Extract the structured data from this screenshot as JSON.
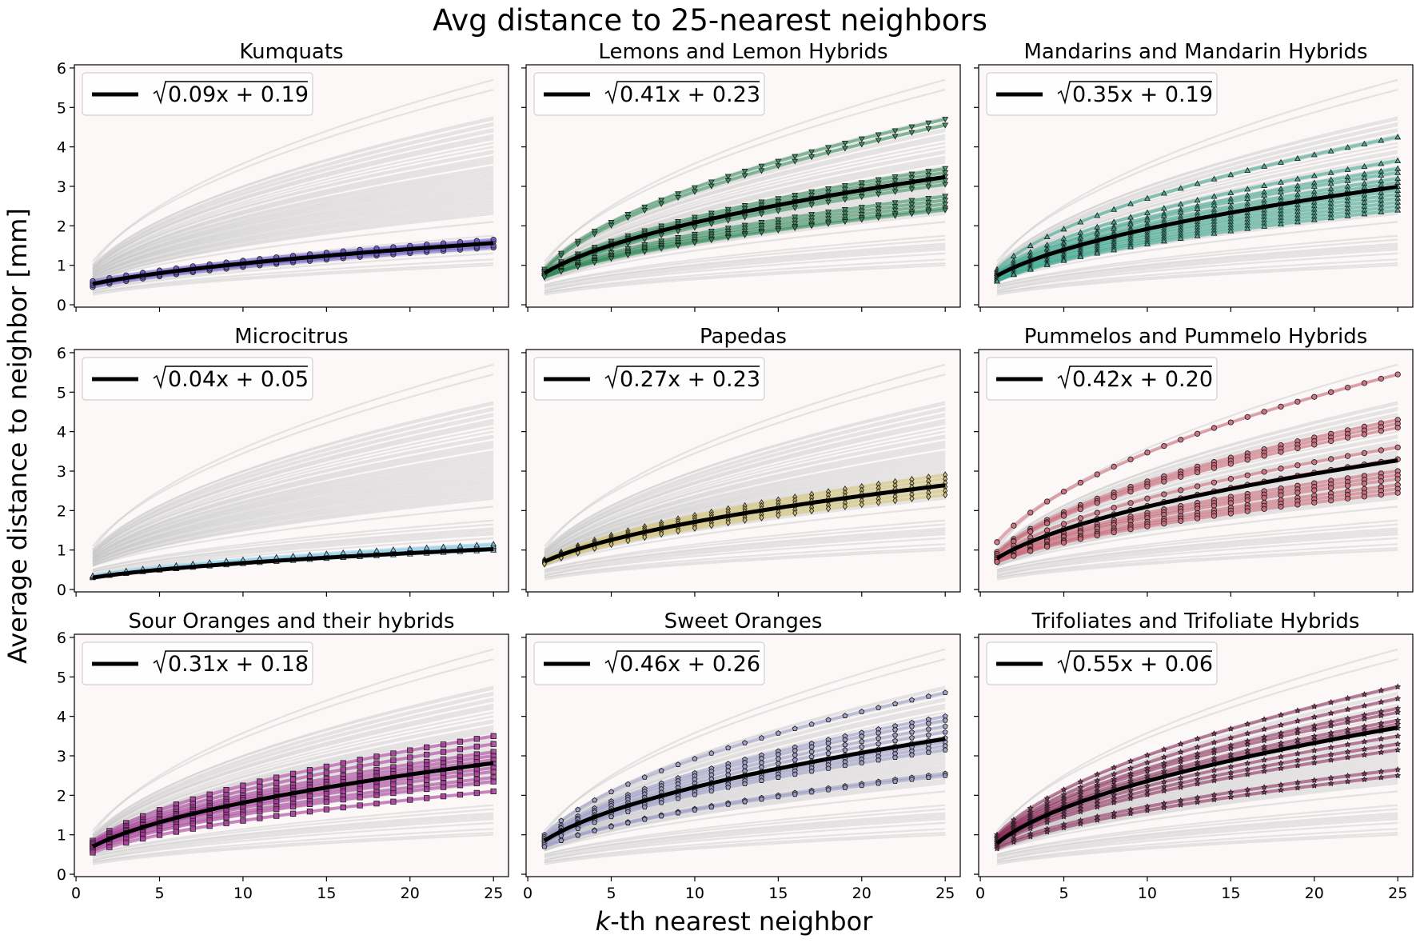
{
  "figure": {
    "title": "Avg distance to 25-nearest neighbors",
    "ylabel": "Average distance to neighbor [mm]",
    "xlabel_italic": "k",
    "xlabel_rest": "-th nearest neighbor"
  },
  "axes_style": {
    "background": "#fcf8f7",
    "background_line_color": "#c8c8c8",
    "fit_line_color": "#000000"
  },
  "chart_data": [
    {
      "type": "line",
      "title": "Kumquats",
      "x": [
        1,
        25
      ],
      "xlim": [
        0,
        25
      ],
      "ylim": [
        0,
        6
      ],
      "xticks": [
        0,
        5,
        10,
        15,
        20,
        25
      ],
      "yticks": [
        0,
        1,
        2,
        3,
        4,
        5,
        6
      ],
      "legend": "top-left",
      "fit_label": "0.09x + 0.19",
      "fit": {
        "a": 0.09,
        "b": 0.19
      },
      "highlight": {
        "color": "#6a5acd",
        "marker": "circle",
        "endpoints": [
          [
            0.45,
            1.45
          ],
          [
            0.5,
            1.5
          ],
          [
            0.55,
            1.6
          ],
          [
            0.6,
            1.65
          ]
        ]
      }
    },
    {
      "type": "line",
      "title": "Lemons and Lemon Hybrids",
      "x": [
        1,
        25
      ],
      "xlim": [
        0,
        25
      ],
      "ylim": [
        0,
        6
      ],
      "xticks": [
        0,
        5,
        10,
        15,
        20,
        25
      ],
      "yticks": [
        0,
        1,
        2,
        3,
        4,
        5,
        6
      ],
      "legend": "top-left",
      "fit_label": "0.41x + 0.23",
      "fit": {
        "a": 0.41,
        "b": 0.23
      },
      "highlight": {
        "color": "#2e8b57",
        "marker": "triangle-down",
        "endpoints": [
          [
            0.9,
            4.7
          ],
          [
            0.85,
            4.55
          ],
          [
            0.85,
            3.45
          ],
          [
            0.8,
            3.35
          ],
          [
            0.8,
            3.25
          ],
          [
            0.75,
            3.15
          ],
          [
            0.75,
            3.05
          ],
          [
            0.75,
            2.75
          ],
          [
            0.7,
            2.65
          ],
          [
            0.7,
            2.55
          ],
          [
            0.7,
            2.45
          ],
          [
            0.7,
            2.4
          ]
        ]
      }
    },
    {
      "type": "line",
      "title": "Mandarins and Mandarin Hybrids",
      "x": [
        1,
        25
      ],
      "xlim": [
        0,
        25
      ],
      "ylim": [
        0,
        6
      ],
      "xticks": [
        0,
        5,
        10,
        15,
        20,
        25
      ],
      "yticks": [
        0,
        1,
        2,
        3,
        4,
        5,
        6
      ],
      "legend": "top-left",
      "fit_label": "0.35x + 0.19",
      "fit": {
        "a": 0.35,
        "b": 0.19
      },
      "highlight": {
        "color": "#3aa98f",
        "marker": "triangle-up",
        "endpoints": [
          [
            0.9,
            4.25
          ],
          [
            0.85,
            3.65
          ],
          [
            0.8,
            3.45
          ],
          [
            0.8,
            3.35
          ],
          [
            0.75,
            3.2
          ],
          [
            0.75,
            3.1
          ],
          [
            0.7,
            3.0
          ],
          [
            0.7,
            2.9
          ],
          [
            0.65,
            2.8
          ],
          [
            0.65,
            2.7
          ],
          [
            0.6,
            2.6
          ],
          [
            0.6,
            2.5
          ],
          [
            0.6,
            2.4
          ]
        ]
      }
    },
    {
      "type": "line",
      "title": "Microcitrus",
      "x": [
        1,
        25
      ],
      "xlim": [
        0,
        25
      ],
      "ylim": [
        0,
        6
      ],
      "xticks": [
        0,
        5,
        10,
        15,
        20,
        25
      ],
      "yticks": [
        0,
        1,
        2,
        3,
        4,
        5,
        6
      ],
      "legend": "top-left",
      "fit_label": "0.04x + 0.05",
      "fit": {
        "a": 0.04,
        "b": 0.05
      },
      "highlight": {
        "color": "#87ceeb",
        "marker": "triangle-up",
        "endpoints": [
          [
            0.3,
            1.0
          ],
          [
            0.32,
            1.05
          ],
          [
            0.34,
            1.1
          ],
          [
            0.35,
            1.15
          ]
        ]
      }
    },
    {
      "type": "line",
      "title": "Papedas",
      "x": [
        1,
        25
      ],
      "xlim": [
        0,
        25
      ],
      "ylim": [
        0,
        6
      ],
      "xticks": [
        0,
        5,
        10,
        15,
        20,
        25
      ],
      "yticks": [
        0,
        1,
        2,
        3,
        4,
        5,
        6
      ],
      "legend": "top-left",
      "fit_label": "0.27x + 0.23",
      "fit": {
        "a": 0.27,
        "b": 0.23
      },
      "highlight": {
        "color": "#d4c26a",
        "marker": "diamond",
        "endpoints": [
          [
            0.75,
            2.9
          ],
          [
            0.72,
            2.8
          ],
          [
            0.7,
            2.7
          ],
          [
            0.68,
            2.6
          ],
          [
            0.66,
            2.5
          ],
          [
            0.65,
            2.4
          ]
        ]
      }
    },
    {
      "type": "line",
      "title": "Pummelos and Pummelo Hybrids",
      "x": [
        1,
        25
      ],
      "xlim": [
        0,
        25
      ],
      "ylim": [
        0,
        6
      ],
      "xticks": [
        0,
        5,
        10,
        15,
        20,
        25
      ],
      "yticks": [
        0,
        1,
        2,
        3,
        4,
        5,
        6
      ],
      "legend": "top-left",
      "fit_label": "0.42x + 0.20",
      "fit": {
        "a": 0.42,
        "b": 0.2
      },
      "highlight": {
        "color": "#cc6677",
        "marker": "circle",
        "endpoints": [
          [
            1.2,
            5.45
          ],
          [
            0.95,
            4.3
          ],
          [
            0.9,
            4.2
          ],
          [
            0.9,
            4.1
          ],
          [
            0.85,
            3.6
          ],
          [
            0.8,
            3.3
          ],
          [
            0.8,
            3.0
          ],
          [
            0.75,
            2.9
          ],
          [
            0.75,
            2.8
          ],
          [
            0.7,
            2.65
          ],
          [
            0.7,
            2.55
          ],
          [
            0.7,
            2.45
          ]
        ]
      }
    },
    {
      "type": "line",
      "title": "Sour Oranges and their hybrids",
      "x": [
        1,
        25
      ],
      "xlim": [
        0,
        25
      ],
      "ylim": [
        0,
        6
      ],
      "xticks": [
        0,
        5,
        10,
        15,
        20,
        25
      ],
      "yticks": [
        0,
        1,
        2,
        3,
        4,
        5,
        6
      ],
      "legend": "top-left",
      "fit_label": "0.31x + 0.18",
      "fit": {
        "a": 0.31,
        "b": 0.18
      },
      "highlight": {
        "color": "#aa3399",
        "marker": "square",
        "endpoints": [
          [
            0.85,
            3.5
          ],
          [
            0.8,
            3.3
          ],
          [
            0.8,
            3.1
          ],
          [
            0.75,
            3.0
          ],
          [
            0.75,
            2.9
          ],
          [
            0.7,
            2.8
          ],
          [
            0.7,
            2.7
          ],
          [
            0.7,
            2.6
          ],
          [
            0.65,
            2.45
          ],
          [
            0.6,
            2.35
          ],
          [
            0.55,
            2.1
          ]
        ]
      }
    },
    {
      "type": "line",
      "title": "Sweet Oranges",
      "x": [
        1,
        25
      ],
      "xlim": [
        0,
        25
      ],
      "ylim": [
        0,
        6
      ],
      "xticks": [
        0,
        5,
        10,
        15,
        20,
        25
      ],
      "yticks": [
        0,
        1,
        2,
        3,
        4,
        5,
        6
      ],
      "legend": "top-left",
      "fit_label": "0.46x + 0.26",
      "fit": {
        "a": 0.46,
        "b": 0.26
      },
      "highlight": {
        "color": "#9a9ac8",
        "marker": "pentagon",
        "endpoints": [
          [
            1.0,
            4.6
          ],
          [
            0.95,
            4.0
          ],
          [
            0.9,
            3.9
          ],
          [
            0.9,
            3.75
          ],
          [
            0.85,
            3.6
          ],
          [
            0.85,
            3.45
          ],
          [
            0.8,
            3.35
          ],
          [
            0.8,
            3.25
          ],
          [
            0.75,
            3.15
          ],
          [
            0.7,
            2.55
          ],
          [
            0.7,
            2.5
          ]
        ]
      }
    },
    {
      "type": "line",
      "title": "Trifoliates and Trifoliate Hybrids",
      "x": [
        1,
        25
      ],
      "xlim": [
        0,
        25
      ],
      "ylim": [
        0,
        6
      ],
      "xticks": [
        0,
        5,
        10,
        15,
        20,
        25
      ],
      "yticks": [
        0,
        1,
        2,
        3,
        4,
        5,
        6
      ],
      "legend": "top-left",
      "fit_label": "0.55x + 0.06",
      "fit": {
        "a": 0.55,
        "b": 0.06
      },
      "highlight": {
        "color": "#882255",
        "marker": "star",
        "endpoints": [
          [
            1.0,
            4.75
          ],
          [
            0.95,
            4.45
          ],
          [
            0.95,
            4.2
          ],
          [
            0.9,
            4.1
          ],
          [
            0.9,
            3.9
          ],
          [
            0.85,
            3.8
          ],
          [
            0.85,
            3.7
          ],
          [
            0.8,
            3.5
          ],
          [
            0.8,
            3.3
          ],
          [
            0.75,
            3.15
          ],
          [
            0.7,
            2.65
          ],
          [
            0.65,
            2.5
          ]
        ]
      }
    }
  ],
  "background_curves": [
    [
      1.0,
      5.7
    ],
    [
      1.1,
      5.45
    ],
    [
      0.95,
      4.75
    ],
    [
      1.0,
      4.7
    ],
    [
      0.95,
      4.6
    ],
    [
      0.9,
      4.55
    ],
    [
      0.95,
      4.45
    ],
    [
      0.9,
      4.4
    ],
    [
      0.9,
      4.3
    ],
    [
      0.9,
      4.25
    ],
    [
      0.9,
      4.2
    ],
    [
      0.85,
      4.1
    ],
    [
      0.85,
      4.0
    ],
    [
      0.85,
      3.9
    ],
    [
      0.85,
      3.85
    ],
    [
      0.8,
      3.75
    ],
    [
      0.8,
      3.7
    ],
    [
      0.8,
      3.65
    ],
    [
      0.8,
      3.6
    ],
    [
      0.8,
      3.5
    ],
    [
      0.8,
      3.45
    ],
    [
      0.8,
      3.4
    ],
    [
      0.75,
      3.35
    ],
    [
      0.75,
      3.3
    ],
    [
      0.75,
      3.25
    ],
    [
      0.75,
      3.2
    ],
    [
      0.75,
      3.15
    ],
    [
      0.75,
      3.1
    ],
    [
      0.7,
      3.05
    ],
    [
      0.7,
      3.0
    ],
    [
      0.7,
      2.95
    ],
    [
      0.7,
      2.9
    ],
    [
      0.7,
      2.85
    ],
    [
      0.7,
      2.8
    ],
    [
      0.7,
      2.75
    ],
    [
      0.7,
      2.7
    ],
    [
      0.65,
      2.65
    ],
    [
      0.65,
      2.6
    ],
    [
      0.65,
      2.55
    ],
    [
      0.65,
      2.5
    ],
    [
      0.65,
      2.45
    ],
    [
      0.6,
      2.4
    ],
    [
      0.6,
      2.35
    ],
    [
      0.6,
      2.3
    ],
    [
      0.6,
      2.1
    ],
    [
      0.5,
      1.75
    ],
    [
      0.5,
      1.65
    ],
    [
      0.45,
      1.55
    ],
    [
      0.45,
      1.5
    ],
    [
      0.4,
      1.45
    ],
    [
      0.35,
      1.4
    ],
    [
      0.35,
      1.3
    ],
    [
      0.3,
      1.15
    ],
    [
      0.3,
      1.05
    ],
    [
      0.25,
      1.0
    ]
  ]
}
